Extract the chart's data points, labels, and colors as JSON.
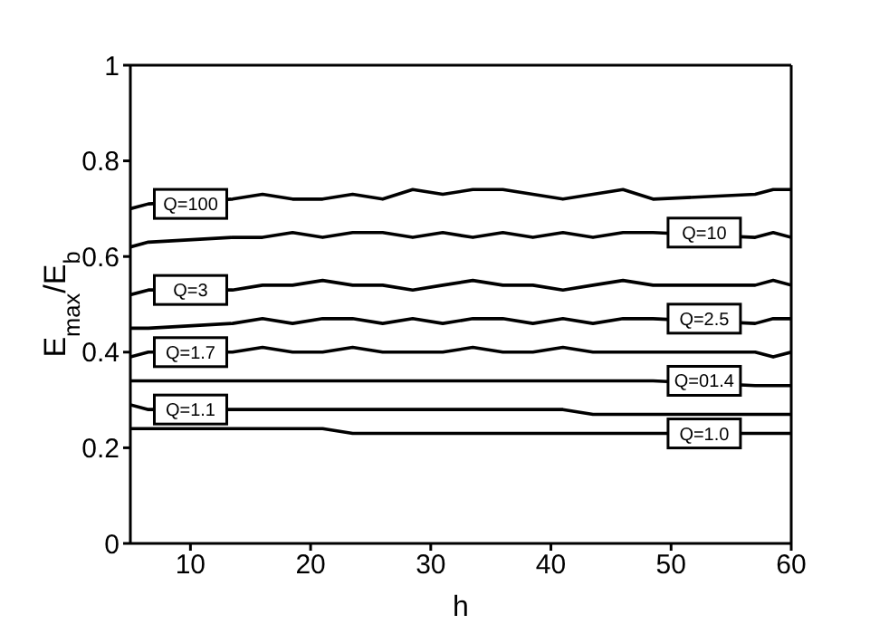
{
  "chart_data": {
    "type": "line",
    "xlabel": "h",
    "ylabel": "E$_{max}$/E$_{b}$",
    "x": [
      5,
      6.5,
      13.5,
      16,
      18.5,
      21,
      23.5,
      26,
      28.5,
      31,
      33.5,
      36,
      38.5,
      41,
      43.5,
      46,
      48.5,
      57,
      58.5,
      60
    ],
    "series": [
      {
        "name": "Q=100",
        "color": "#000000",
        "values": [
          0.7,
          0.71,
          0.72,
          0.73,
          0.72,
          0.72,
          0.73,
          0.72,
          0.74,
          0.73,
          0.74,
          0.74,
          0.73,
          0.72,
          0.73,
          0.74,
          0.72,
          0.73,
          0.74,
          0.74
        ]
      },
      {
        "name": "Q=10",
        "color": "#000000",
        "values": [
          0.62,
          0.63,
          0.64,
          0.64,
          0.65,
          0.64,
          0.65,
          0.65,
          0.64,
          0.65,
          0.64,
          0.65,
          0.64,
          0.65,
          0.64,
          0.65,
          0.65,
          0.64,
          0.65,
          0.64
        ]
      },
      {
        "name": "Q=3",
        "color": "#000000",
        "values": [
          0.52,
          0.53,
          0.53,
          0.54,
          0.54,
          0.55,
          0.54,
          0.54,
          0.53,
          0.54,
          0.55,
          0.54,
          0.54,
          0.53,
          0.54,
          0.55,
          0.54,
          0.54,
          0.55,
          0.54
        ]
      },
      {
        "name": "Q=2.5",
        "color": "#000000",
        "values": [
          0.45,
          0.45,
          0.46,
          0.47,
          0.46,
          0.47,
          0.47,
          0.46,
          0.47,
          0.46,
          0.47,
          0.47,
          0.46,
          0.47,
          0.46,
          0.47,
          0.47,
          0.46,
          0.47,
          0.47
        ]
      },
      {
        "name": "Q=1.7",
        "color": "#000000",
        "values": [
          0.39,
          0.4,
          0.4,
          0.41,
          0.4,
          0.4,
          0.41,
          0.4,
          0.4,
          0.4,
          0.41,
          0.4,
          0.4,
          0.41,
          0.4,
          0.4,
          0.4,
          0.4,
          0.39,
          0.4
        ]
      },
      {
        "name": "Q=01.4",
        "color": "#000000",
        "values": [
          0.34,
          0.34,
          0.34,
          0.34,
          0.34,
          0.34,
          0.34,
          0.34,
          0.34,
          0.34,
          0.34,
          0.34,
          0.34,
          0.34,
          0.34,
          0.34,
          0.34,
          0.33,
          0.33,
          0.33
        ]
      },
      {
        "name": "Q=1.1",
        "color": "#000000",
        "values": [
          0.29,
          0.28,
          0.28,
          0.28,
          0.28,
          0.28,
          0.28,
          0.28,
          0.28,
          0.28,
          0.28,
          0.28,
          0.28,
          0.28,
          0.27,
          0.27,
          0.27,
          0.27,
          0.27,
          0.27
        ]
      },
      {
        "name": "Q=1.0",
        "color": "#000000",
        "values": [
          0.24,
          0.24,
          0.24,
          0.24,
          0.24,
          0.24,
          0.23,
          0.23,
          0.23,
          0.23,
          0.23,
          0.23,
          0.23,
          0.23,
          0.23,
          0.23,
          0.23,
          0.23,
          0.23,
          0.23
        ]
      }
    ],
    "xlim": [
      5,
      60
    ],
    "xticks": [
      10,
      20,
      30,
      40,
      50,
      60
    ],
    "ylim": [
      0,
      1
    ],
    "yticks": [
      0,
      0.2,
      0.4,
      0.6,
      0.8,
      1
    ],
    "grid": false,
    "legend": false,
    "marker": "none",
    "line_style": "solid"
  }
}
